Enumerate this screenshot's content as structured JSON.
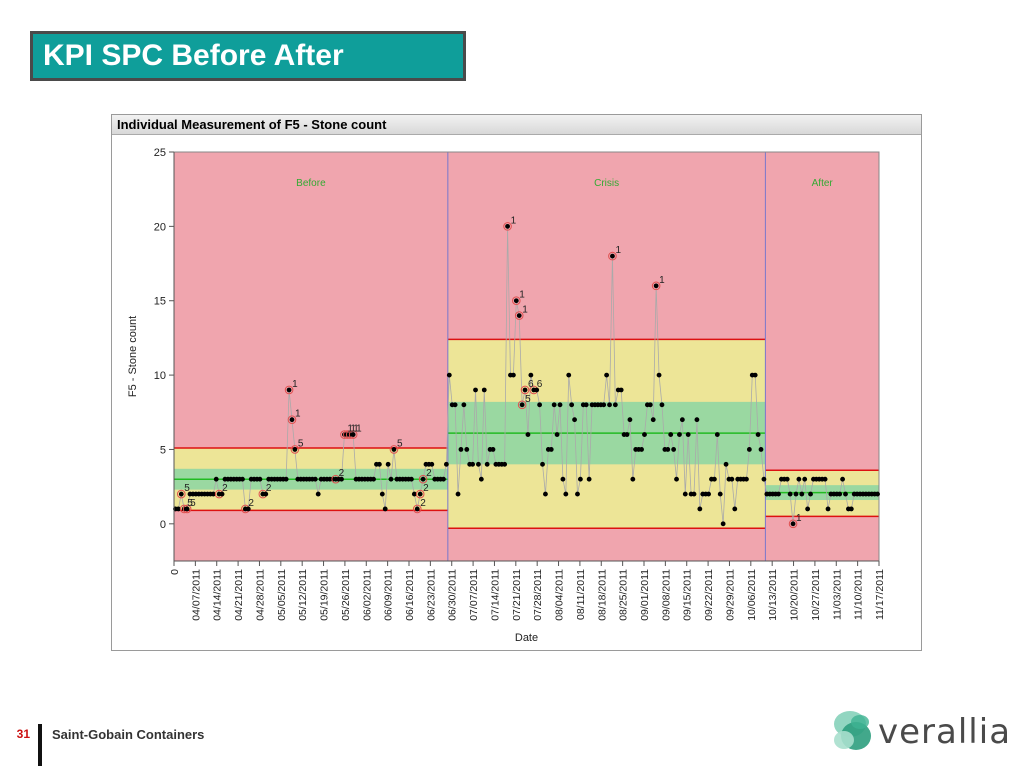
{
  "slide": {
    "title": "KPI SPC Before After",
    "page_number": "31",
    "footer_text": "Saint-Gobain Containers",
    "logo_text": "verallia"
  },
  "chart_data": {
    "type": "scatter",
    "title": "Individual Measurement of F5 - Stone count",
    "xlabel": "Date",
    "ylabel": "F5 - Stone count",
    "ylim": [
      -2.5,
      25
    ],
    "yticks": [
      0,
      5,
      10,
      15,
      20,
      25
    ],
    "xticks": [
      "0",
      "04/07/2011",
      "04/14/2011",
      "04/21/2011",
      "04/28/2011",
      "05/05/2011",
      "05/12/2011",
      "05/19/2011",
      "05/26/2011",
      "06/02/2011",
      "06/09/2011",
      "06/16/2011",
      "06/23/2011",
      "06/30/2011",
      "07/07/2011",
      "07/14/2011",
      "07/21/2011",
      "07/28/2011",
      "08/04/2011",
      "08/11/2011",
      "08/18/2011",
      "08/25/2011",
      "09/01/2011",
      "09/08/2011",
      "09/15/2011",
      "09/22/2011",
      "09/29/2011",
      "10/06/2011",
      "10/13/2011",
      "10/20/2011",
      "10/27/2011",
      "11/03/2011",
      "11/10/2011",
      "11/17/2011"
    ],
    "colors": {
      "out_of_control": "#f0a5ae",
      "zone_outer": "#ede597",
      "zone_inner": "#9ad8a1",
      "limit_line": "#dd1111",
      "center_line": "#22bb22",
      "phase_divider": "#7777cc",
      "point": "#000000",
      "violation_ring": "#e05050"
    },
    "phases": [
      {
        "name": "Before",
        "ucl": 5.1,
        "lcl": 0.9,
        "center": 3.0,
        "zone_upper": 3.7,
        "zone_lower": 2.3,
        "values": [
          1,
          1,
          2,
          1,
          1,
          2,
          2,
          2,
          2,
          2,
          2,
          2,
          2,
          2,
          3,
          2,
          2,
          3,
          3,
          3,
          3,
          3,
          3,
          3,
          1,
          1,
          3,
          3,
          3,
          3,
          2,
          2,
          3,
          3,
          3,
          3,
          3,
          3,
          3,
          9,
          7,
          5,
          3,
          3,
          3,
          3,
          3,
          3,
          3,
          2,
          3,
          3,
          3,
          3,
          3,
          3,
          3,
          3,
          6,
          6,
          6,
          6,
          3,
          3,
          3,
          3,
          3,
          3,
          3,
          4,
          4,
          2,
          1,
          4,
          3,
          5,
          3,
          3,
          3,
          3,
          3,
          3,
          2,
          1,
          2,
          3,
          4,
          4,
          4,
          3,
          3,
          3,
          3,
          4
        ]
      },
      {
        "name": "Crisis",
        "ucl": 12.4,
        "lcl": -0.3,
        "center": 6.1,
        "zone_upper": 8.2,
        "zone_lower": 4.0,
        "values": [
          10,
          8,
          8,
          2,
          5,
          8,
          5,
          4,
          4,
          9,
          4,
          3,
          9,
          4,
          5,
          5,
          4,
          4,
          4,
          4,
          20,
          10,
          10,
          15,
          14,
          8,
          9,
          6,
          10,
          9,
          9,
          8,
          4,
          2,
          5,
          5,
          8,
          6,
          8,
          3,
          2,
          10,
          8,
          7,
          2,
          3,
          8,
          8,
          3,
          8,
          8,
          8,
          8,
          8,
          10,
          8,
          18,
          8,
          9,
          9,
          6,
          6,
          7,
          3,
          5,
          5,
          5,
          6,
          8,
          8,
          7,
          16,
          10,
          8,
          5,
          5,
          6,
          5,
          3,
          6,
          7,
          2,
          6,
          2,
          2,
          7,
          1,
          2,
          2,
          2,
          3,
          3,
          6,
          2,
          0,
          4,
          3,
          3,
          1,
          3,
          3,
          3,
          3,
          5,
          10,
          10,
          6,
          5,
          3
        ]
      },
      {
        "name": "After",
        "ucl": 3.6,
        "lcl": 0.5,
        "center": 2.1,
        "zone_upper": 2.6,
        "zone_lower": 1.6,
        "values": [
          2,
          2,
          2,
          2,
          2,
          3,
          3,
          3,
          2,
          0,
          2,
          3,
          2,
          3,
          1,
          2,
          3,
          3,
          3,
          3,
          3,
          1,
          2,
          2,
          2,
          2,
          3,
          2,
          1,
          1,
          2,
          2,
          2,
          2,
          2,
          2,
          2,
          2,
          2
        ]
      }
    ],
    "point_labels": [
      {
        "phase": 0,
        "index": 39,
        "text": "1"
      },
      {
        "phase": 0,
        "index": 40,
        "text": "1"
      },
      {
        "phase": 0,
        "index": 41,
        "text": "5"
      },
      {
        "phase": 0,
        "index": 58,
        "text": "1"
      },
      {
        "phase": 0,
        "index": 59,
        "text": "1"
      },
      {
        "phase": 0,
        "index": 60,
        "text": "1"
      },
      {
        "phase": 0,
        "index": 61,
        "text": "1"
      },
      {
        "phase": 0,
        "index": 75,
        "text": "5"
      },
      {
        "phase": 0,
        "index": 2,
        "text": "5"
      },
      {
        "phase": 0,
        "index": 3,
        "text": "5"
      },
      {
        "phase": 0,
        "index": 4,
        "text": "5"
      },
      {
        "phase": 0,
        "index": 15,
        "text": "2"
      },
      {
        "phase": 0,
        "index": 24,
        "text": "2"
      },
      {
        "phase": 0,
        "index": 30,
        "text": "2"
      },
      {
        "phase": 0,
        "index": 55,
        "text": "2"
      },
      {
        "phase": 0,
        "index": 83,
        "text": "2"
      },
      {
        "phase": 0,
        "index": 84,
        "text": "2"
      },
      {
        "phase": 0,
        "index": 85,
        "text": "2"
      },
      {
        "phase": 1,
        "index": 20,
        "text": "1"
      },
      {
        "phase": 1,
        "index": 23,
        "text": "1"
      },
      {
        "phase": 1,
        "index": 24,
        "text": "1"
      },
      {
        "phase": 1,
        "index": 25,
        "text": "5"
      },
      {
        "phase": 1,
        "index": 26,
        "text": "6"
      },
      {
        "phase": 1,
        "index": 29,
        "text": "6"
      },
      {
        "phase": 1,
        "index": 56,
        "text": "1"
      },
      {
        "phase": 1,
        "index": 71,
        "text": "1"
      },
      {
        "phase": 2,
        "index": 9,
        "text": "1"
      }
    ]
  }
}
